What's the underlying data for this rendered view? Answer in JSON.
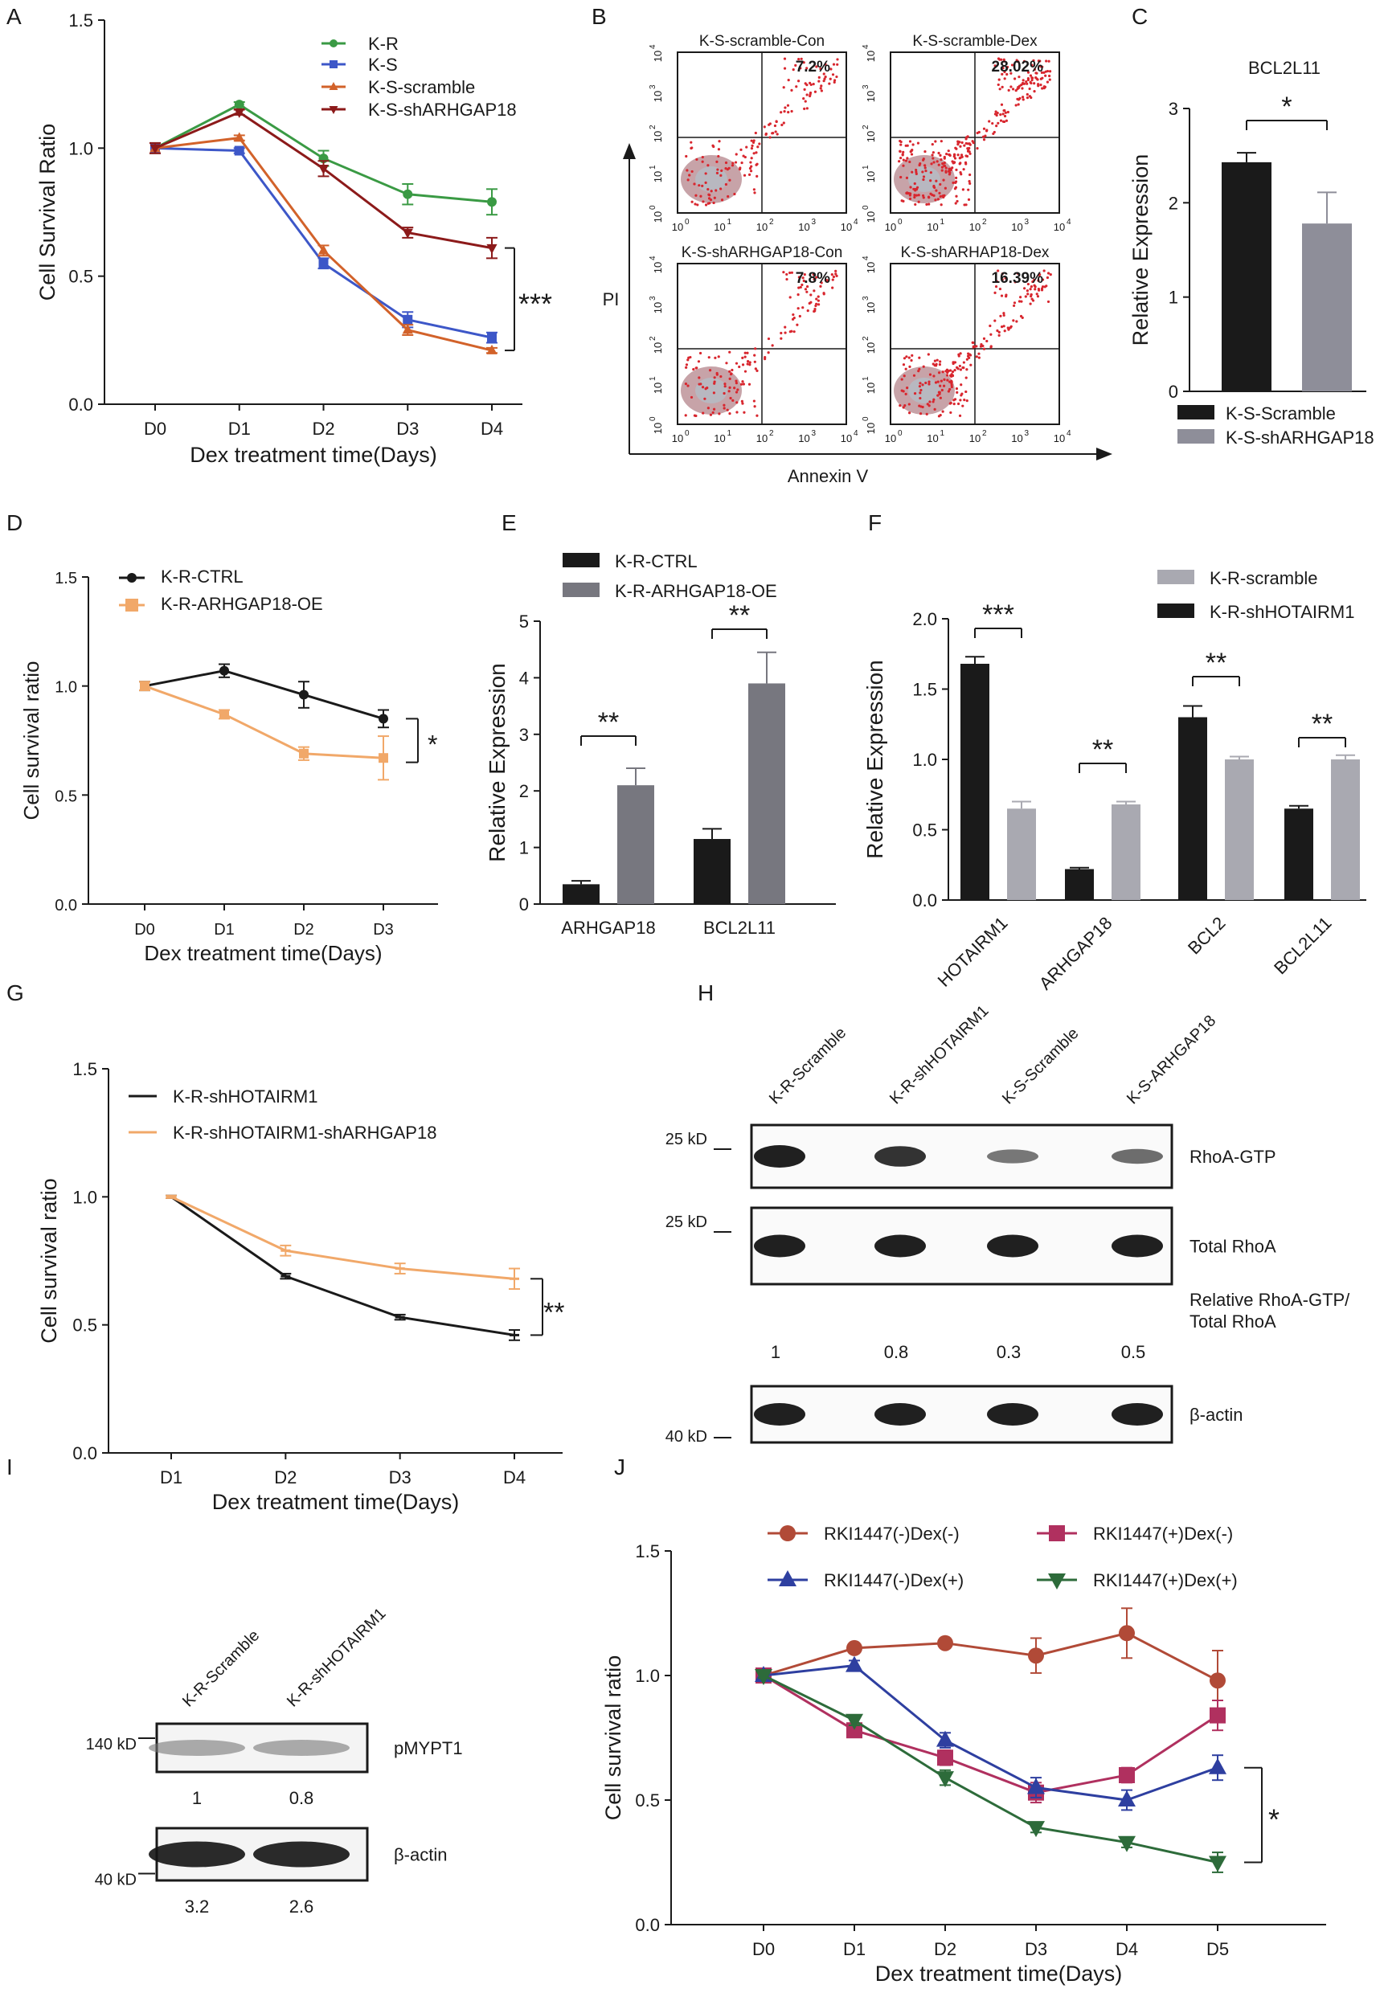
{
  "colors": {
    "black": "#1a1a1a",
    "green": "#3a9a44",
    "blue": "#3d57c8",
    "orange": "#d2622a",
    "darkred": "#8c1a1a",
    "grey": "#8e8e99",
    "lightorange": "#f1a869",
    "brown": "#b14a37",
    "magenta": "#b0305f",
    "navy": "#2e3fa0",
    "darkgreen": "#2d6b3a",
    "dotred": "#d8262e"
  },
  "panel_letters": [
    "A",
    "B",
    "C",
    "D",
    "E",
    "F",
    "G",
    "H",
    "I",
    "J"
  ],
  "chart_data": [
    {
      "id": "A",
      "type": "line",
      "title": "",
      "xlabel": "Dex treatment time(Days)",
      "ylabel": "Cell Survival Ratio",
      "categories": [
        "D0",
        "D1",
        "D2",
        "D3",
        "D4"
      ],
      "yticks": [
        "0.0",
        "0.5",
        "1.0",
        "1.5"
      ],
      "ylim": [
        0,
        1.5
      ],
      "series": [
        {
          "name": "K-R",
          "color": "#3a9a44",
          "marker": "circle",
          "values": [
            1.0,
            1.17,
            0.96,
            0.82,
            0.79
          ],
          "err": [
            0.02,
            0.01,
            0.03,
            0.04,
            0.05
          ]
        },
        {
          "name": "K-S",
          "color": "#3d57c8",
          "marker": "square",
          "values": [
            1.0,
            0.99,
            0.55,
            0.33,
            0.26
          ],
          "err": [
            0.02,
            0.01,
            0.02,
            0.03,
            0.02
          ]
        },
        {
          "name": "K-S-scramble",
          "color": "#d2622a",
          "marker": "triangle",
          "values": [
            1.0,
            1.04,
            0.6,
            0.29,
            0.21
          ],
          "err": [
            0.02,
            0.01,
            0.02,
            0.02,
            0.01
          ]
        },
        {
          "name": "K-S-shARHGAP18",
          "color": "#8c1a1a",
          "marker": "triangle-down",
          "values": [
            1.0,
            1.14,
            0.92,
            0.67,
            0.61
          ],
          "err": [
            0.02,
            0.01,
            0.03,
            0.02,
            0.04
          ]
        }
      ],
      "annotation": "***"
    },
    {
      "id": "C",
      "type": "bar",
      "title": "BCL2L11",
      "xlabel": "",
      "ylabel": "Relative Expression",
      "categories": [
        "K-S-Scramble",
        "K-S-shARHGAP18"
      ],
      "values": [
        2.43,
        1.78
      ],
      "err": [
        0.1,
        0.33
      ],
      "colors": [
        "#1a1a1a",
        "#8e8e99"
      ],
      "yticks": [
        "0",
        "1",
        "2",
        "3"
      ],
      "ylim": [
        0,
        3
      ],
      "annotation": "*"
    },
    {
      "id": "D",
      "type": "line",
      "xlabel": "Dex treatment time(Days)",
      "ylabel": "Cell survival ratio",
      "categories": [
        "D0",
        "D1",
        "D2",
        "D3"
      ],
      "yticks": [
        "0.0",
        "0.5",
        "1.0",
        "1.5"
      ],
      "ylim": [
        0,
        1.5
      ],
      "series": [
        {
          "name": "K-R-CTRL",
          "color": "#1a1a1a",
          "marker": "circle",
          "values": [
            1.0,
            1.07,
            0.96,
            0.85
          ],
          "err": [
            0.02,
            0.03,
            0.06,
            0.04
          ]
        },
        {
          "name": "K-R-ARHGAP18-OE",
          "color": "#f1a869",
          "marker": "square",
          "values": [
            1.0,
            0.87,
            0.69,
            0.67
          ],
          "err": [
            0.02,
            0.02,
            0.03,
            0.1
          ]
        }
      ],
      "annotation": "*"
    },
    {
      "id": "E",
      "type": "bar",
      "xlabel": "",
      "ylabel": "Relative Expression",
      "categories": [
        "ARHGAP18",
        "BCL2L11"
      ],
      "series": [
        {
          "name": "K-R-CTRL",
          "color": "#1a1a1a",
          "values": [
            0.35,
            1.15
          ],
          "err": [
            0.06,
            0.18
          ]
        },
        {
          "name": "K-R-ARHGAP18-OE",
          "color": "#77777f",
          "values": [
            2.1,
            3.9
          ],
          "err": [
            0.3,
            0.55
          ]
        }
      ],
      "yticks": [
        "0",
        "1",
        "2",
        "3",
        "4",
        "5"
      ],
      "ylim": [
        0,
        5
      ],
      "annotations": [
        "**",
        "**"
      ]
    },
    {
      "id": "F",
      "type": "bar",
      "xlabel": "",
      "ylabel": "Relative Expression",
      "categories": [
        "HOTAIRM1",
        "ARHGAP18",
        "BCL2",
        "BCL2L11"
      ],
      "legend": [
        {
          "name": "K-R-scramble",
          "color": "#a9a9b1"
        },
        {
          "name": "K-R-shHOTAIRM1",
          "color": "#1a1a1a"
        }
      ],
      "series": [
        {
          "name": "K-R-shHOTAIRM1",
          "color": "#1a1a1a",
          "values": [
            1.68,
            0.22,
            1.3,
            0.65
          ],
          "err": [
            0.05,
            0.01,
            0.08,
            0.02
          ]
        },
        {
          "name": "K-R-scramble",
          "color": "#a9a9b1",
          "values": [
            0.65,
            0.68,
            1.0,
            1.0
          ],
          "err": [
            0.05,
            0.02,
            0.02,
            0.03
          ]
        }
      ],
      "yticks": [
        "0.0",
        "0.5",
        "1.0",
        "1.5",
        "2.0"
      ],
      "ylim": [
        0,
        2
      ],
      "annotations": [
        "***",
        "**",
        "**",
        "**"
      ]
    },
    {
      "id": "G",
      "type": "line",
      "xlabel": "Dex treatment time(Days)",
      "ylabel": "Cell survival ratio",
      "categories": [
        "D1",
        "D2",
        "D3",
        "D4"
      ],
      "yticks": [
        "0.0",
        "0.5",
        "1.0",
        "1.5"
      ],
      "ylim": [
        0,
        1.5
      ],
      "series": [
        {
          "name": "K-R-shHOTAIRM1",
          "color": "#1a1a1a",
          "marker": "dash",
          "values": [
            1.0,
            0.69,
            0.53,
            0.46
          ],
          "err": [
            0.005,
            0.01,
            0.01,
            0.02
          ]
        },
        {
          "name": "K-R-shHOTAIRM1-shARHGAP18",
          "color": "#f1a869",
          "marker": "dash",
          "values": [
            1.0,
            0.79,
            0.72,
            0.68
          ],
          "err": [
            0.005,
            0.02,
            0.02,
            0.04
          ]
        }
      ],
      "annotation": "**"
    },
    {
      "id": "J",
      "type": "line",
      "xlabel": "Dex treatment time(Days)",
      "ylabel": "Cell survival ratio",
      "categories": [
        "D0",
        "D1",
        "D2",
        "D3",
        "D4",
        "D5"
      ],
      "yticks": [
        "0.0",
        "0.5",
        "1.0",
        "1.5"
      ],
      "ylim": [
        0,
        1.5
      ],
      "series": [
        {
          "name": "RKI1447(-)Dex(-)",
          "color": "#b14a37",
          "marker": "circle",
          "values": [
            1.0,
            1.11,
            1.13,
            1.08,
            1.17,
            0.98
          ],
          "err": [
            0.01,
            0.02,
            0.02,
            0.07,
            0.1,
            0.12
          ]
        },
        {
          "name": "RKI1447(+)Dex(-)",
          "color": "#b0305f",
          "marker": "square",
          "values": [
            1.0,
            0.78,
            0.67,
            0.53,
            0.6,
            0.84
          ],
          "err": [
            0.01,
            0.02,
            0.03,
            0.04,
            0.03,
            0.06
          ]
        },
        {
          "name": "RKI1447(-)Dex(+)",
          "color": "#2e3fa0",
          "marker": "triangle",
          "values": [
            1.0,
            1.04,
            0.74,
            0.55,
            0.5,
            0.63
          ],
          "err": [
            0.01,
            0.02,
            0.03,
            0.04,
            0.04,
            0.05
          ]
        },
        {
          "name": "RKI1447(+)Dex(+)",
          "color": "#2d6b3a",
          "marker": "triangle-down",
          "values": [
            1.0,
            0.82,
            0.59,
            0.39,
            0.33,
            0.25
          ],
          "err": [
            0.01,
            0.02,
            0.03,
            0.02,
            0.02,
            0.04
          ]
        }
      ],
      "annotation": "*"
    }
  ],
  "panelB": {
    "xlabel": "Annexin V",
    "ylabel": "PI",
    "plots": [
      {
        "title": "K-S-scramble-Con",
        "pct": "7.2%"
      },
      {
        "title": "K-S-scramble-Dex",
        "pct": "28.02%"
      },
      {
        "title": "K-S-shARHGAP18-Con",
        "pct": "7.8%"
      },
      {
        "title": "K-S-shARHAP18-Dex",
        "pct": "16.39%"
      }
    ],
    "tick_base": "10",
    "tick_exps": [
      "0",
      "1",
      "2",
      "3",
      "4"
    ]
  },
  "panelH": {
    "lanes": [
      "K-R-Scramble",
      "K-R-shHOTAIRM1",
      "K-S-Scramble",
      "K-S-ARHGAP18"
    ],
    "bands": [
      {
        "label": "RhoA-GTP",
        "kd": "25 kD"
      },
      {
        "label": "Total RhoA",
        "kd": "25 kD"
      },
      {
        "label": "β-actin",
        "kd": "40 kD"
      }
    ],
    "ratio_label_1": "Relative RhoA-GTP/",
    "ratio_label_2": "Total RhoA",
    "ratios": [
      "1",
      "0.8",
      "0.3",
      "0.5"
    ]
  },
  "panelI": {
    "lanes": [
      "K-R-Scramble",
      "K-R-shHOTAIRM1"
    ],
    "bands": [
      {
        "label": "pMYPT1",
        "kd": "140 kD"
      },
      {
        "label": "β-actin",
        "kd": "40 kD"
      }
    ],
    "values1": [
      "1",
      "0.8"
    ],
    "values2": [
      "3.2",
      "2.6"
    ]
  }
}
